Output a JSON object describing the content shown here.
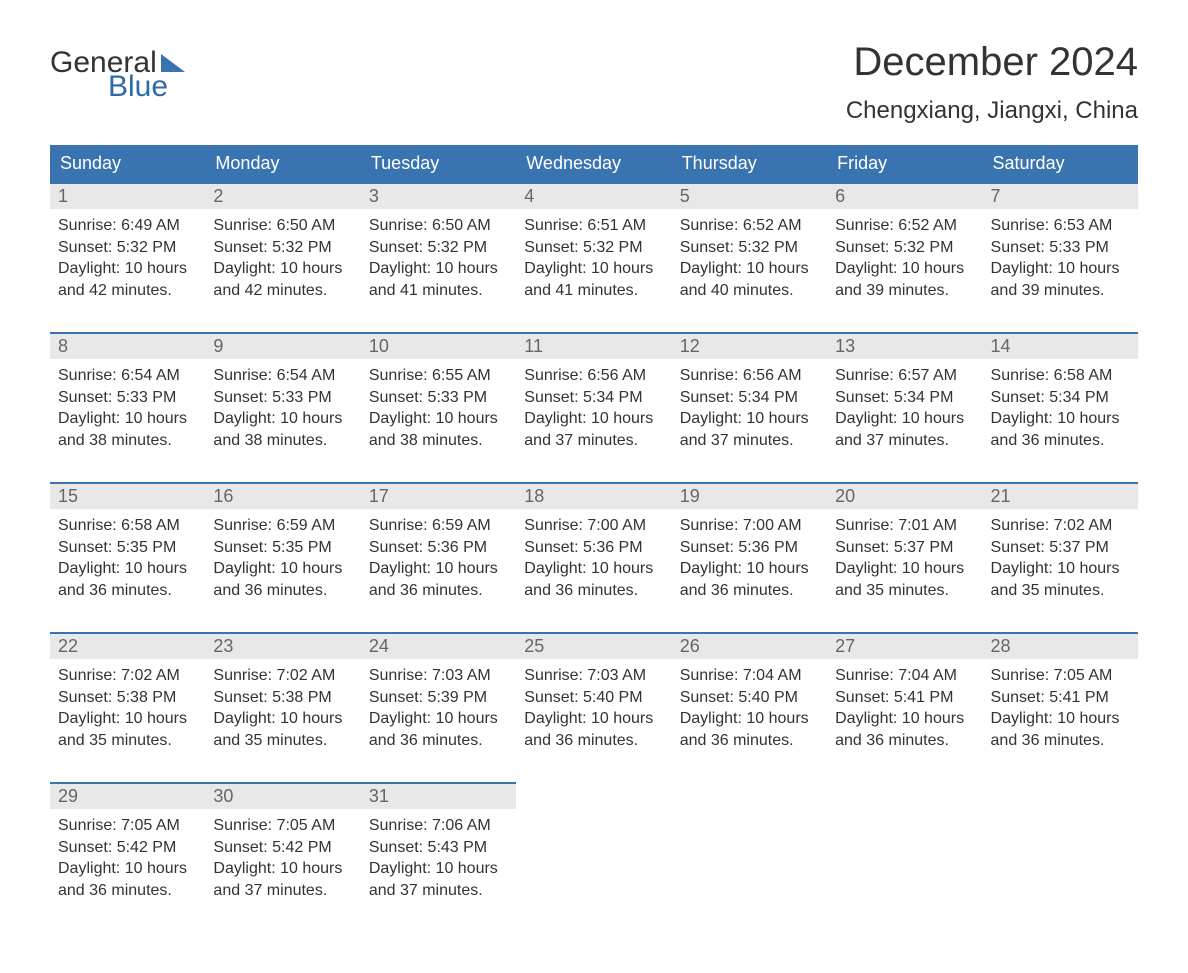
{
  "brand": {
    "word1": "General",
    "word2": "Blue"
  },
  "title": "December 2024",
  "location": "Chengxiang, Jiangxi, China",
  "colors": {
    "header_bg": "#3a74b0",
    "header_text": "#ffffff",
    "daynum_bg": "#e8e8e8",
    "daynum_text": "#666666",
    "body_text": "#333333",
    "border": "#3a74b0",
    "background": "#ffffff"
  },
  "dayNames": [
    "Sunday",
    "Monday",
    "Tuesday",
    "Wednesday",
    "Thursday",
    "Friday",
    "Saturday"
  ],
  "labels": {
    "sunrise": "Sunrise: ",
    "sunset": "Sunset: ",
    "daylight": "Daylight: "
  },
  "weeks": [
    [
      {
        "num": "1",
        "sunrise": "6:49 AM",
        "sunset": "5:32 PM",
        "daylight": "10 hours and 42 minutes."
      },
      {
        "num": "2",
        "sunrise": "6:50 AM",
        "sunset": "5:32 PM",
        "daylight": "10 hours and 42 minutes."
      },
      {
        "num": "3",
        "sunrise": "6:50 AM",
        "sunset": "5:32 PM",
        "daylight": "10 hours and 41 minutes."
      },
      {
        "num": "4",
        "sunrise": "6:51 AM",
        "sunset": "5:32 PM",
        "daylight": "10 hours and 41 minutes."
      },
      {
        "num": "5",
        "sunrise": "6:52 AM",
        "sunset": "5:32 PM",
        "daylight": "10 hours and 40 minutes."
      },
      {
        "num": "6",
        "sunrise": "6:52 AM",
        "sunset": "5:32 PM",
        "daylight": "10 hours and 39 minutes."
      },
      {
        "num": "7",
        "sunrise": "6:53 AM",
        "sunset": "5:33 PM",
        "daylight": "10 hours and 39 minutes."
      }
    ],
    [
      {
        "num": "8",
        "sunrise": "6:54 AM",
        "sunset": "5:33 PM",
        "daylight": "10 hours and 38 minutes."
      },
      {
        "num": "9",
        "sunrise": "6:54 AM",
        "sunset": "5:33 PM",
        "daylight": "10 hours and 38 minutes."
      },
      {
        "num": "10",
        "sunrise": "6:55 AM",
        "sunset": "5:33 PM",
        "daylight": "10 hours and 38 minutes."
      },
      {
        "num": "11",
        "sunrise": "6:56 AM",
        "sunset": "5:34 PM",
        "daylight": "10 hours and 37 minutes."
      },
      {
        "num": "12",
        "sunrise": "6:56 AM",
        "sunset": "5:34 PM",
        "daylight": "10 hours and 37 minutes."
      },
      {
        "num": "13",
        "sunrise": "6:57 AM",
        "sunset": "5:34 PM",
        "daylight": "10 hours and 37 minutes."
      },
      {
        "num": "14",
        "sunrise": "6:58 AM",
        "sunset": "5:34 PM",
        "daylight": "10 hours and 36 minutes."
      }
    ],
    [
      {
        "num": "15",
        "sunrise": "6:58 AM",
        "sunset": "5:35 PM",
        "daylight": "10 hours and 36 minutes."
      },
      {
        "num": "16",
        "sunrise": "6:59 AM",
        "sunset": "5:35 PM",
        "daylight": "10 hours and 36 minutes."
      },
      {
        "num": "17",
        "sunrise": "6:59 AM",
        "sunset": "5:36 PM",
        "daylight": "10 hours and 36 minutes."
      },
      {
        "num": "18",
        "sunrise": "7:00 AM",
        "sunset": "5:36 PM",
        "daylight": "10 hours and 36 minutes."
      },
      {
        "num": "19",
        "sunrise": "7:00 AM",
        "sunset": "5:36 PM",
        "daylight": "10 hours and 36 minutes."
      },
      {
        "num": "20",
        "sunrise": "7:01 AM",
        "sunset": "5:37 PM",
        "daylight": "10 hours and 35 minutes."
      },
      {
        "num": "21",
        "sunrise": "7:02 AM",
        "sunset": "5:37 PM",
        "daylight": "10 hours and 35 minutes."
      }
    ],
    [
      {
        "num": "22",
        "sunrise": "7:02 AM",
        "sunset": "5:38 PM",
        "daylight": "10 hours and 35 minutes."
      },
      {
        "num": "23",
        "sunrise": "7:02 AM",
        "sunset": "5:38 PM",
        "daylight": "10 hours and 35 minutes."
      },
      {
        "num": "24",
        "sunrise": "7:03 AM",
        "sunset": "5:39 PM",
        "daylight": "10 hours and 36 minutes."
      },
      {
        "num": "25",
        "sunrise": "7:03 AM",
        "sunset": "5:40 PM",
        "daylight": "10 hours and 36 minutes."
      },
      {
        "num": "26",
        "sunrise": "7:04 AM",
        "sunset": "5:40 PM",
        "daylight": "10 hours and 36 minutes."
      },
      {
        "num": "27",
        "sunrise": "7:04 AM",
        "sunset": "5:41 PM",
        "daylight": "10 hours and 36 minutes."
      },
      {
        "num": "28",
        "sunrise": "7:05 AM",
        "sunset": "5:41 PM",
        "daylight": "10 hours and 36 minutes."
      }
    ],
    [
      {
        "num": "29",
        "sunrise": "7:05 AM",
        "sunset": "5:42 PM",
        "daylight": "10 hours and 36 minutes."
      },
      {
        "num": "30",
        "sunrise": "7:05 AM",
        "sunset": "5:42 PM",
        "daylight": "10 hours and 37 minutes."
      },
      {
        "num": "31",
        "sunrise": "7:06 AM",
        "sunset": "5:43 PM",
        "daylight": "10 hours and 37 minutes."
      },
      null,
      null,
      null,
      null
    ]
  ]
}
